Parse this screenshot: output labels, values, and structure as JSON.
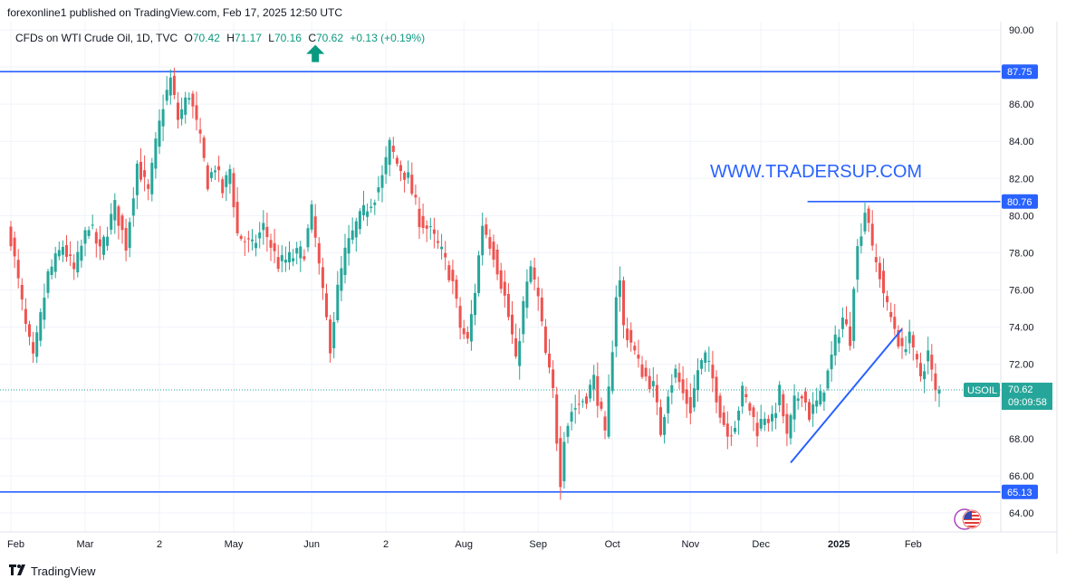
{
  "header": {
    "published": "forexonline1 published on TradingView.com, Feb 17, 2025 12:50 UTC"
  },
  "legend": {
    "symbol": "CFDs on WTI Crude Oil, 1D, TVC",
    "o_label": "O",
    "o": "70.42",
    "h_label": "H",
    "h": "71.17",
    "l_label": "L",
    "l": "70.16",
    "c_label": "C",
    "c": "70.62",
    "change": "+0.13 (+0.19%)"
  },
  "watermark": "WWW.TRADERSUP.COM",
  "footer": {
    "brand": "TradingView"
  },
  "price_tag": {
    "symbol": "USOIL",
    "price": "70.62",
    "countdown": "09:09:58"
  },
  "colors": {
    "up": "#26a69a",
    "down": "#ef5350",
    "level": "#2962ff",
    "arrow": "#089981",
    "text": "#131722"
  },
  "icons": [
    "tradingview-logo-icon",
    "up-arrow-icon",
    "us-flag-icon"
  ],
  "chart_data": {
    "type": "candlestick",
    "title": "CFDs on WTI Crude Oil, 1D, TVC",
    "ylim": [
      63.5,
      90.5
    ],
    "y_ticks": [
      64,
      66,
      68,
      70,
      72,
      74,
      76,
      78,
      80,
      82,
      84,
      86,
      88,
      90
    ],
    "y_tick_labels": [
      "64.00",
      "66.00",
      "68.00",
      "70.00",
      "72.00",
      "74.00",
      "76.00",
      "78.00",
      "80.00",
      "82.00",
      "84.00",
      "86.00",
      "",
      "90.00"
    ],
    "x_labels": [
      {
        "label": "Feb",
        "slot": 0
      },
      {
        "label": "Mar",
        "slot": 20
      },
      {
        "label": "2",
        "slot": 40
      },
      {
        "label": "May",
        "slot": 60
      },
      {
        "label": "Jun",
        "slot": 81
      },
      {
        "label": "2",
        "slot": 101
      },
      {
        "label": "Aug",
        "slot": 122
      },
      {
        "label": "Sep",
        "slot": 142
      },
      {
        "label": "Oct",
        "slot": 162
      },
      {
        "label": "Nov",
        "slot": 183
      },
      {
        "label": "Dec",
        "slot": 202
      },
      {
        "label": "2025",
        "slot": 223
      },
      {
        "label": "Feb",
        "slot": 243
      }
    ],
    "levels": [
      {
        "label": "87.75",
        "value": 87.75,
        "from_slot": 0
      },
      {
        "label": "80.76",
        "value": 80.76,
        "from_slot": 216
      },
      {
        "label": "65.13",
        "value": 65.13,
        "from_slot": 0
      }
    ],
    "trendline": {
      "from": [
        210,
        66.7
      ],
      "to": [
        240,
        73.9
      ]
    },
    "arrow": {
      "slot": 82,
      "value": 88.9
    },
    "current": {
      "value": 70.62
    },
    "anchors": [
      [
        0,
        78.8
      ],
      [
        4,
        74.0
      ],
      [
        6,
        72.2
      ],
      [
        10,
        76.8
      ],
      [
        14,
        78.4
      ],
      [
        17,
        77.0
      ],
      [
        21,
        79.6
      ],
      [
        24,
        78.0
      ],
      [
        28,
        80.5
      ],
      [
        31,
        78.4
      ],
      [
        34,
        82.8
      ],
      [
        37,
        81.2
      ],
      [
        39,
        83.8
      ],
      [
        41,
        86.0
      ],
      [
        43,
        87.3
      ],
      [
        45,
        85.2
      ],
      [
        48,
        86.6
      ],
      [
        51,
        84.0
      ],
      [
        53,
        81.8
      ],
      [
        55,
        82.7
      ],
      [
        57,
        81.3
      ],
      [
        59,
        82.5
      ],
      [
        61,
        79.0
      ],
      [
        65,
        78.3
      ],
      [
        68,
        79.4
      ],
      [
        72,
        77.4
      ],
      [
        76,
        77.8
      ],
      [
        79,
        78.1
      ],
      [
        81,
        80.2
      ],
      [
        84,
        75.7
      ],
      [
        86,
        73.0
      ],
      [
        88,
        76.0
      ],
      [
        90,
        78.0
      ],
      [
        93,
        79.5
      ],
      [
        96,
        80.5
      ],
      [
        98,
        81.1
      ],
      [
        100,
        82.0
      ],
      [
        102,
        83.8
      ],
      [
        104,
        82.8
      ],
      [
        107,
        82.0
      ],
      [
        110,
        79.8
      ],
      [
        113,
        79.1
      ],
      [
        116,
        78.0
      ],
      [
        119,
        76.4
      ],
      [
        121,
        74.0
      ],
      [
        123,
        73.2
      ],
      [
        125,
        76.0
      ],
      [
        127,
        79.6
      ],
      [
        130,
        78.0
      ],
      [
        133,
        75.6
      ],
      [
        135,
        73.5
      ],
      [
        136,
        72.0
      ],
      [
        138,
        75.2
      ],
      [
        140,
        77.2
      ],
      [
        142,
        75.5
      ],
      [
        144,
        72.5
      ],
      [
        146,
        70.5
      ],
      [
        147,
        68.0
      ],
      [
        148,
        65.8
      ],
      [
        149,
        68.2
      ],
      [
        151,
        69.5
      ],
      [
        153,
        69.9
      ],
      [
        155,
        70.3
      ],
      [
        157,
        71.2
      ],
      [
        159,
        69.2
      ],
      [
        160,
        68.0
      ],
      [
        162,
        73.0
      ],
      [
        163,
        75.8
      ],
      [
        164,
        76.4
      ],
      [
        165,
        74.0
      ],
      [
        167,
        73.2
      ],
      [
        169,
        72.0
      ],
      [
        171,
        71.3
      ],
      [
        173,
        70.8
      ],
      [
        175,
        68.4
      ],
      [
        177,
        70.6
      ],
      [
        179,
        71.6
      ],
      [
        181,
        70.4
      ],
      [
        183,
        69.6
      ],
      [
        185,
        71.7
      ],
      [
        187,
        72.4
      ],
      [
        189,
        71.2
      ],
      [
        191,
        69.5
      ],
      [
        193,
        68.2
      ],
      [
        195,
        68.9
      ],
      [
        197,
        70.5
      ],
      [
        199,
        69.6
      ],
      [
        201,
        68.5
      ],
      [
        203,
        69.3
      ],
      [
        205,
        68.9
      ],
      [
        207,
        70.5
      ],
      [
        209,
        68.0
      ],
      [
        211,
        69.9
      ],
      [
        213,
        70.6
      ],
      [
        215,
        69.3
      ],
      [
        218,
        70.2
      ],
      [
        220,
        71.5
      ],
      [
        222,
        73.2
      ],
      [
        224,
        74.5
      ],
      [
        226,
        73.4
      ],
      [
        227,
        76.5
      ],
      [
        228,
        78.2
      ],
      [
        229,
        79.3
      ],
      [
        230,
        80.3
      ],
      [
        231,
        79.8
      ],
      [
        232,
        78.0
      ],
      [
        234,
        76.8
      ],
      [
        236,
        75.0
      ],
      [
        238,
        74.0
      ],
      [
        240,
        72.6
      ],
      [
        242,
        73.8
      ],
      [
        243,
        72.5
      ],
      [
        245,
        71.4
      ],
      [
        247,
        72.6
      ],
      [
        248,
        71.5
      ],
      [
        249,
        70.4
      ],
      [
        250,
        70.62
      ]
    ]
  }
}
